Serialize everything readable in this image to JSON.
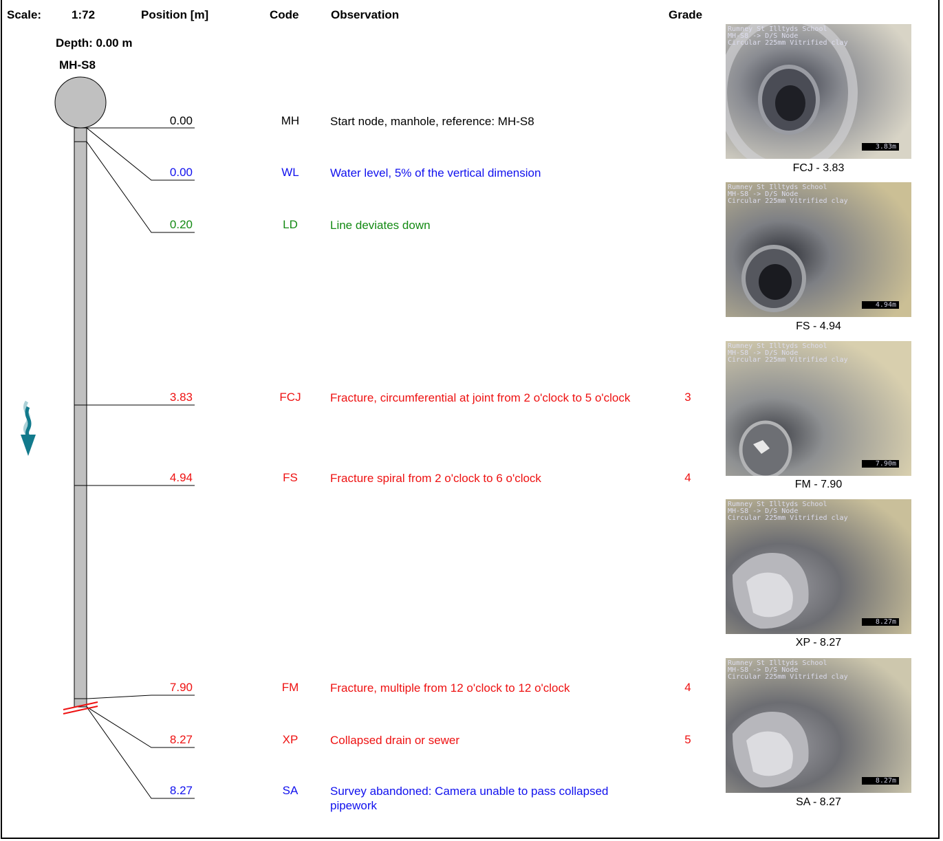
{
  "header": {
    "scale_label": "Scale:",
    "scale_value": "1:72",
    "position_label": "Position [m]",
    "code_label": "Code",
    "observation_label": "Observation",
    "grade_label": "Grade"
  },
  "node": {
    "depth": "Depth: 0.00 m",
    "name": "MH-S8"
  },
  "colors": {
    "black": "#000000",
    "blue": "#1010ee",
    "green": "#138a13",
    "red": "#ee1111",
    "pipe": "#c0c0c0",
    "flow_arrow": "#127a8c"
  },
  "observations": [
    {
      "position": "0.00",
      "code": "MH",
      "text": "Start node, manhole, reference: MH-S8",
      "grade": "",
      "color": "#000000"
    },
    {
      "position": "0.00",
      "code": "WL",
      "text": "Water level, 5% of the vertical dimension",
      "grade": "",
      "color": "#1010ee"
    },
    {
      "position": "0.20",
      "code": "LD",
      "text": "Line deviates down",
      "grade": "",
      "color": "#138a13"
    },
    {
      "position": "3.83",
      "code": "FCJ",
      "text": "Fracture, circumferential at joint from 2 o'clock to 5 o'clock",
      "grade": "3",
      "color": "#ee1111"
    },
    {
      "position": "4.94",
      "code": "FS",
      "text": "Fracture spiral from 2 o'clock to 6 o'clock",
      "grade": "4",
      "color": "#ee1111"
    },
    {
      "position": "7.90",
      "code": "FM",
      "text": "Fracture, multiple from 12 o'clock to 12 o'clock",
      "grade": "4",
      "color": "#ee1111"
    },
    {
      "position": "8.27",
      "code": "XP",
      "text": "Collapsed drain or sewer",
      "grade": "5",
      "color": "#ee1111"
    },
    {
      "position": "8.27",
      "code": "SA",
      "text": "Survey abandoned: Camera unable to pass collapsed pipework",
      "grade": "",
      "color": "#1010ee"
    }
  ],
  "photo_overlay": {
    "line1": "Rumney St Illtyds School",
    "line2": "MH-S8 -> D/S Node",
    "line3": "Circular 225mm Vitrified clay"
  },
  "photos": [
    {
      "caption": "FCJ - 3.83",
      "distance": "3.83m",
      "scene": "pipe-clear"
    },
    {
      "caption": "FS - 4.94",
      "distance": "4.94m",
      "scene": "pipe-clear"
    },
    {
      "caption": "FM - 7.90",
      "distance": "7.90m",
      "scene": "pipe-fracture"
    },
    {
      "caption": "XP - 8.27",
      "distance": "8.27m",
      "scene": "pipe-collapse"
    },
    {
      "caption": "SA - 8.27",
      "distance": "8.27m",
      "scene": "pipe-collapse"
    }
  ]
}
